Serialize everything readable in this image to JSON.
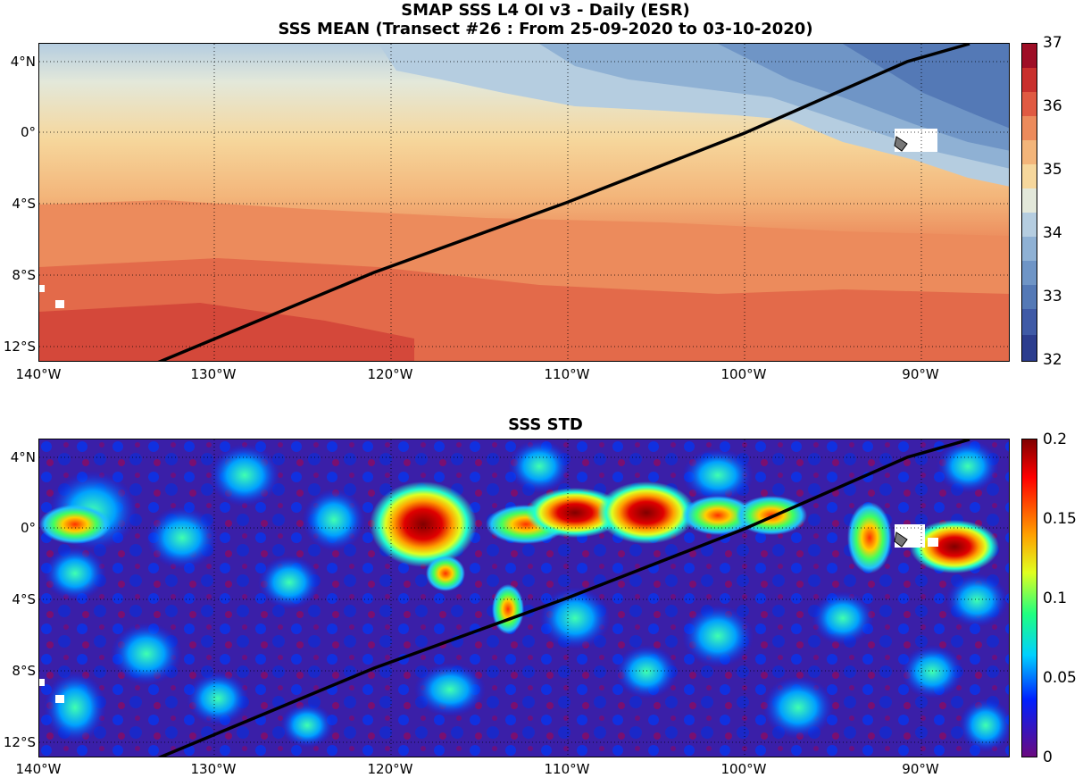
{
  "figure": {
    "title_line1": "SMAP SSS L4 OI v3 - Daily (ESR)",
    "title_line2": "SSS MEAN (Transect #26 : From 25-09-2020 to 03-10-2020)",
    "title_std": "SSS STD"
  },
  "axes": {
    "lat_labels": [
      "4°N",
      "0°",
      "4°S",
      "8°S",
      "12°S"
    ],
    "lon_labels": [
      "140°W",
      "130°W",
      "120°W",
      "110°W",
      "100°W",
      "90°W"
    ]
  },
  "mean_colorbar": {
    "labels": [
      "37",
      "36",
      "35",
      "34",
      "33",
      "32"
    ],
    "colors": [
      "#2c3d8e",
      "#3f5aa6",
      "#5479b6",
      "#6f95c6",
      "#8fb1d4",
      "#b5cde0",
      "#e3e8da",
      "#f6d79c",
      "#f3b57a",
      "#ec8b5c",
      "#e05a42",
      "#c9302d",
      "#9e0e26"
    ]
  },
  "std_colorbar": {
    "labels": [
      "0.2",
      "0.15",
      "0.1",
      "0.05",
      "0"
    ]
  },
  "transect": {
    "name": "Transect #26",
    "start_date": "25-09-2020",
    "end_date": "03-10-2020"
  }
}
